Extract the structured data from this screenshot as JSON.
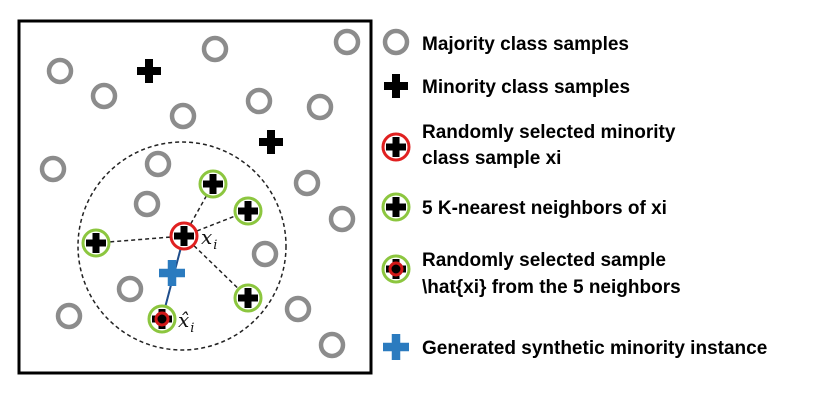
{
  "colors": {
    "majority": "#8c8c8c",
    "minority": "#000000",
    "selected_ring": "#e02020",
    "neighbor_ring": "#8cc63f",
    "chosen_core": "#d01818",
    "synthetic": "#2b7bbf",
    "frame": "#000000",
    "link": "#222222"
  },
  "icons": {
    "majority": "gray-ring-icon",
    "minority": "black-plus-icon",
    "selected": "red-ring-plus-icon",
    "neighbor": "green-ring-plus-icon",
    "chosen": "green-ring-red-plus-icon",
    "synthetic": "blue-plus-icon"
  },
  "plot": {
    "xi_label": "x",
    "xi_sub": "i",
    "xhat_label": "x̂",
    "xhat_sub": "i"
  },
  "legend": {
    "items": [
      {
        "key": "majority",
        "lines": [
          "Majority class samples"
        ]
      },
      {
        "key": "minority",
        "lines": [
          "Minority class samples"
        ]
      },
      {
        "key": "selected",
        "lines": [
          "Randomly selected minority",
          "class sample xi"
        ]
      },
      {
        "key": "neighbor",
        "lines": [
          "5 K-nearest neighbors of xi"
        ]
      },
      {
        "key": "chosen",
        "lines": [
          "Randomly selected sample",
          "\\hat{xi} from the 5 neighbors"
        ]
      },
      {
        "key": "synthetic",
        "lines": [
          "Generated synthetic minority instance"
        ]
      }
    ]
  }
}
